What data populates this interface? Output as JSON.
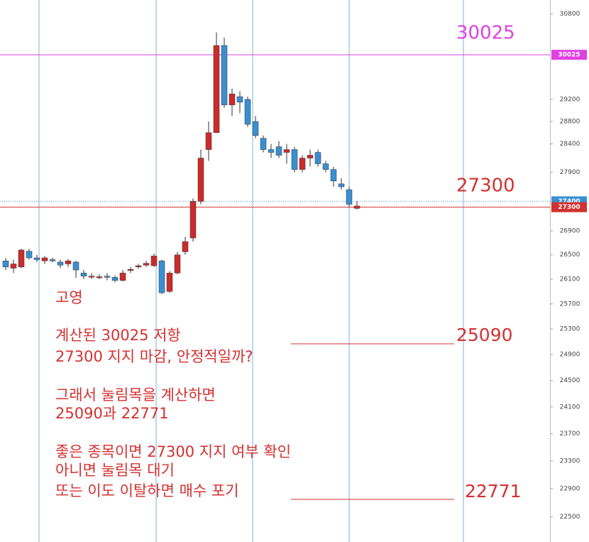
{
  "chart_data": {
    "type": "candlestick",
    "log_scale": true,
    "grid": true,
    "up_color": "#cc2b2b",
    "down_color": "#3a8fd1",
    "open": [
      26400,
      26280,
      26300,
      26560,
      26450,
      26400,
      26420,
      26380,
      26350,
      26380,
      26200,
      26140,
      26140,
      26150,
      26130,
      26080,
      26250,
      26300,
      26330,
      26320,
      26400,
      25900,
      26200,
      26550,
      26780,
      27400,
      28300,
      28600,
      30200,
      29100,
      29250,
      29200,
      28800,
      28500,
      28300,
      28350,
      28250,
      28300,
      27950,
      28150,
      28250,
      28050,
      27950,
      27700,
      27600,
      27280
    ],
    "high": [
      26450,
      26420,
      26600,
      26600,
      26500,
      26480,
      26450,
      26420,
      26430,
      26400,
      26250,
      26200,
      26180,
      26200,
      26160,
      26250,
      26300,
      26350,
      26400,
      26520,
      26420,
      26230,
      26550,
      26800,
      27450,
      28300,
      28800,
      30450,
      30350,
      29400,
      29350,
      29250,
      28900,
      28550,
      28400,
      28450,
      28400,
      28350,
      28200,
      28300,
      28300,
      28100,
      28000,
      27800,
      27650,
      27400
    ],
    "low": [
      26250,
      26200,
      26280,
      26420,
      26380,
      26350,
      26380,
      26280,
      26300,
      26120,
      26100,
      26100,
      26100,
      26080,
      26050,
      26060,
      26200,
      26270,
      26300,
      26300,
      25860,
      25880,
      26180,
      26500,
      26720,
      27350,
      28100,
      28600,
      29050,
      28900,
      28950,
      28700,
      28500,
      28250,
      28150,
      28150,
      28050,
      27900,
      27900,
      28000,
      28000,
      27900,
      27650,
      27600,
      27300,
      27260
    ],
    "close": [
      26300,
      26350,
      26580,
      26450,
      26420,
      26450,
      26400,
      26330,
      26400,
      26250,
      26150,
      26150,
      26140,
      26130,
      26080,
      26200,
      26260,
      26320,
      26360,
      26480,
      25880,
      26200,
      26500,
      26720,
      27400,
      28150,
      28600,
      30200,
      29100,
      29300,
      29150,
      28750,
      28550,
      28300,
      28250,
      28200,
      28300,
      27950,
      28150,
      28200,
      28050,
      27950,
      27750,
      27650,
      27350,
      27320
    ],
    "ylim": [
      22150,
      31070
    ],
    "yticks": [
      30800,
      29200,
      28800,
      28400,
      27900,
      26900,
      26500,
      26100,
      25700,
      25300,
      24900,
      24500,
      24100,
      23700,
      23300,
      22900,
      22500
    ],
    "hlines": [
      {
        "value": 30025,
        "color": "#e040e0",
        "style": "solid"
      },
      {
        "value": 27400,
        "color": "#3a8fd1",
        "style": "dotted"
      },
      {
        "value": 27300,
        "color": "#d33030",
        "style": "solid"
      }
    ],
    "annotations": {
      "title": "고영",
      "lines": [
        "계산된 30025 저항",
        "27300 지지 마감, 안정적일까?",
        "그래서 눌림목을 계산하면",
        "25090과 22771",
        "좋은 종목이면 27300 지지 여부 확인",
        "아니면 눌림목 대기",
        "또는 이도 이탈하면 매수 포기"
      ],
      "levels": [
        "25090",
        "22771"
      ]
    }
  }
}
